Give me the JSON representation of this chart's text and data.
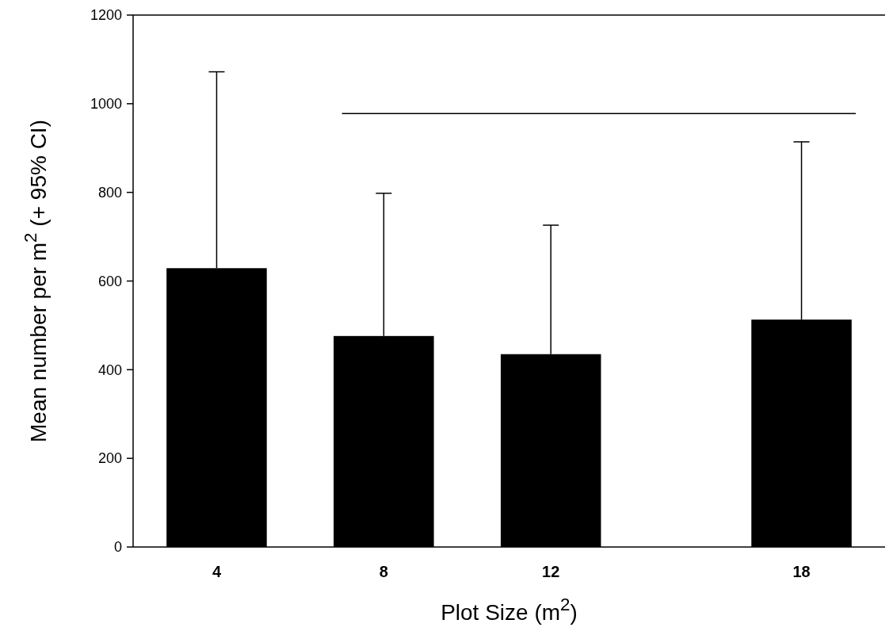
{
  "chart_data": {
    "type": "bar",
    "xlabel": "Plot Size (m$^{2}$)",
    "ylabel": "Mean number per m$^{2}$ (+ 95% CI)",
    "x": [
      4,
      8,
      12,
      18
    ],
    "xlim": [
      2,
      20
    ],
    "xticks": [
      4,
      8,
      12,
      18
    ],
    "ylim": [
      0,
      1200
    ],
    "yticks": [
      0,
      200,
      400,
      600,
      800,
      1000,
      1200
    ],
    "grid": false,
    "series": [
      {
        "color": "#000000",
        "values": [
          629,
          476,
          435,
          513
        ],
        "errors": [
          [
            629,
            1072
          ],
          [
            476,
            798
          ],
          [
            435,
            726
          ],
          [
            513,
            914
          ]
        ]
      },
      {
        "type": "line",
        "color": "#000000",
        "x": [
          7,
          19.3
        ],
        "values": [
          978,
          978
        ],
        "marker": "none"
      }
    ]
  }
}
